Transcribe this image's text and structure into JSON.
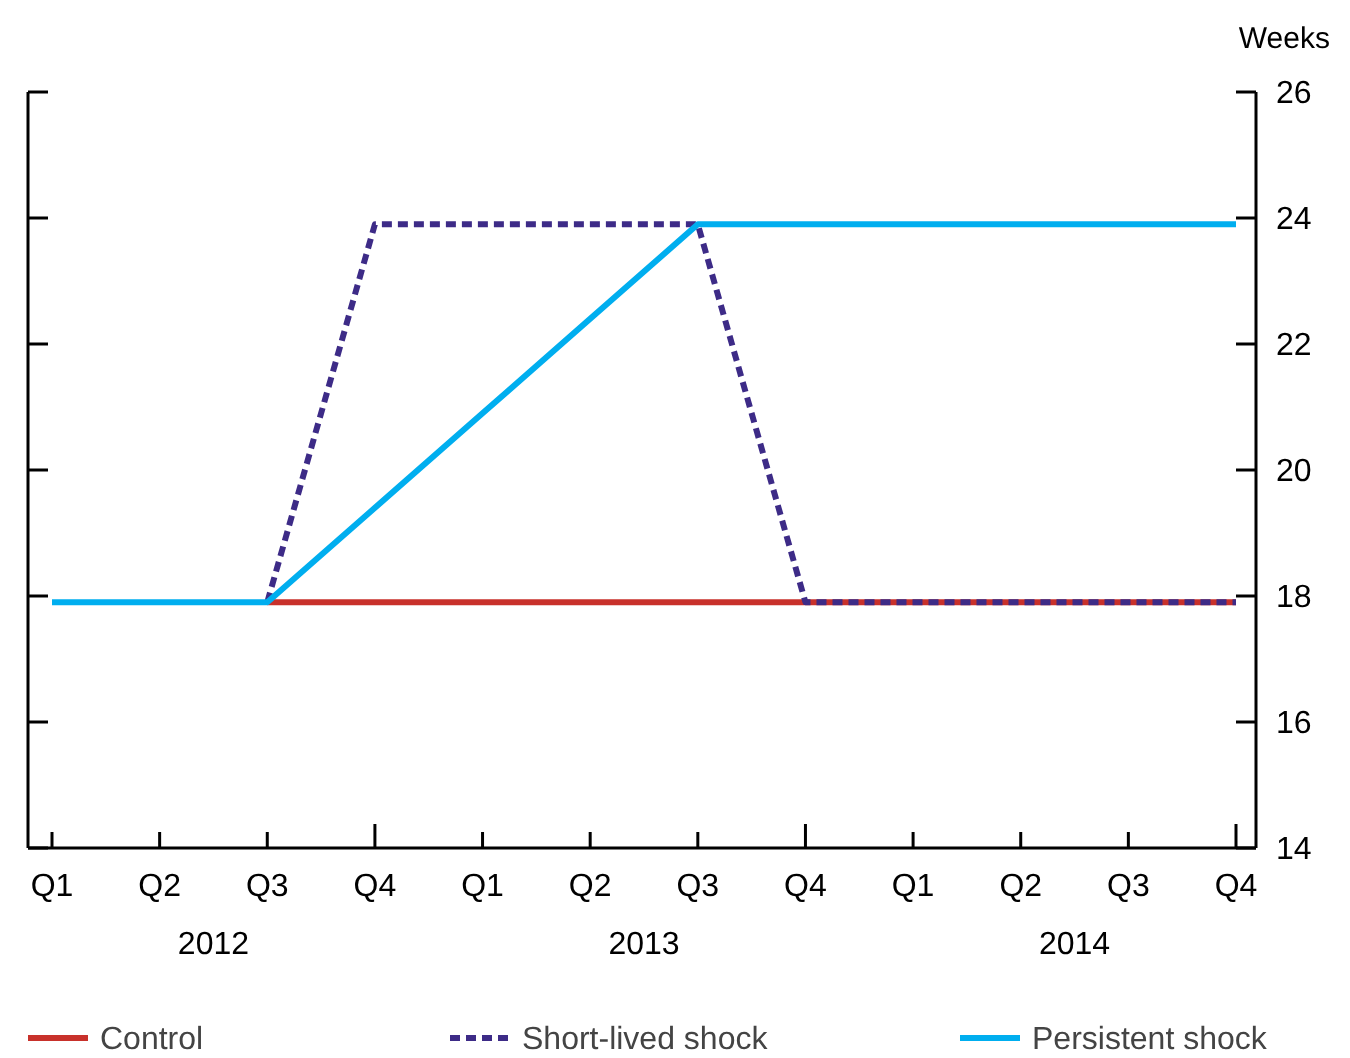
{
  "chart_data": {
    "type": "line",
    "ylabel": "Weeks",
    "categories": [
      "Q1",
      "Q2",
      "Q3",
      "Q4",
      "Q1",
      "Q2",
      "Q3",
      "Q4",
      "Q1",
      "Q2",
      "Q3",
      "Q4"
    ],
    "series": [
      {
        "name": "Control",
        "color": "#c8312b",
        "line_style": "solid",
        "values": [
          null,
          null,
          17.9,
          17.9,
          17.9,
          17.9,
          17.9,
          17.9,
          17.9,
          17.9,
          17.9,
          17.9
        ]
      },
      {
        "name": "Short-lived shock",
        "color": "#3d2b87",
        "line_style": "dashed",
        "values": [
          null,
          null,
          17.9,
          23.9,
          23.9,
          23.9,
          23.9,
          17.9,
          17.9,
          17.9,
          17.9,
          17.9
        ]
      },
      {
        "name": "Persistent shock",
        "color": "#00aeef",
        "line_style": "solid",
        "values": [
          17.9,
          17.9,
          17.9,
          19.4,
          20.9,
          22.4,
          23.9,
          23.9,
          23.9,
          23.9,
          23.9,
          23.9
        ]
      }
    ],
    "annotations": [
      "2012",
      "2013",
      "2014"
    ],
    "ylim": [
      14,
      26
    ],
    "yticks": [
      14,
      16,
      18,
      20,
      22,
      24,
      26
    ],
    "grid": false,
    "legend": "bottom",
    "marker": "none"
  }
}
